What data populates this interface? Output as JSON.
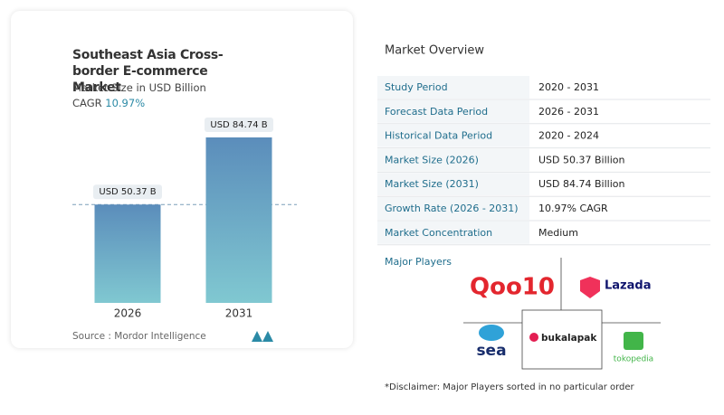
{
  "chart_data": {
    "type": "bar",
    "title": "Southeast Asia Cross-border E-commerce Market",
    "subtitle": "Market Size in USD Billion",
    "cagr_label": "CAGR",
    "cagr_value": "10.97%",
    "categories": [
      "2026",
      "2031"
    ],
    "values": [
      50.37,
      84.74
    ],
    "value_labels": [
      "USD 50.37 B",
      "USD 84.74 B"
    ],
    "gradient": [
      "#5b8dbb",
      "#80c8d1"
    ],
    "source": "Source : Mordor Intelligence"
  },
  "overview": {
    "title": "Market Overview",
    "rows": [
      [
        "Study Period",
        "2020 - 2031"
      ],
      [
        "Forecast Data Period",
        "2026 - 2031"
      ],
      [
        "Historical Data Period",
        "2020 - 2024"
      ],
      [
        "Market Size (2026)",
        "USD 50.37 Billion"
      ],
      [
        "Market Size (2031)",
        "USD 84.74 Billion"
      ],
      [
        "Growth Rate (2026 - 2031)",
        "10.97% CAGR"
      ],
      [
        "Market Concentration",
        "Medium"
      ]
    ]
  },
  "players": {
    "title": "Major Players",
    "names": [
      "Qoo10",
      "Lazada",
      "sea",
      "bukalapak",
      "tokopedia"
    ]
  },
  "disclaimer": "*Disclaimer: Major Players sorted in no particular order"
}
